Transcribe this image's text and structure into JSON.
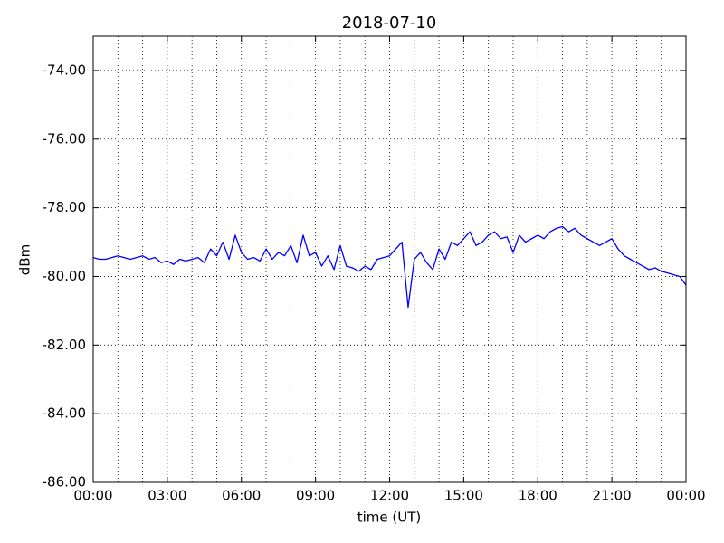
{
  "chart_data": {
    "type": "line",
    "title": "2018-07-10",
    "xlabel": "time (UT)",
    "ylabel": "dBm",
    "x": [
      0,
      0.25,
      0.5,
      0.75,
      1,
      1.25,
      1.5,
      1.75,
      2,
      2.25,
      2.5,
      2.75,
      3,
      3.25,
      3.5,
      3.75,
      4,
      4.25,
      4.5,
      4.75,
      5,
      5.25,
      5.5,
      5.75,
      6,
      6.25,
      6.5,
      6.75,
      7,
      7.25,
      7.5,
      7.75,
      8,
      8.25,
      8.5,
      8.75,
      9,
      9.25,
      9.5,
      9.75,
      10,
      10.25,
      10.5,
      10.75,
      11,
      11.25,
      11.5,
      11.75,
      12,
      12.25,
      12.5,
      12.75,
      13,
      13.25,
      13.5,
      13.75,
      14,
      14.25,
      14.5,
      14.75,
      15,
      15.25,
      15.5,
      15.75,
      16,
      16.25,
      16.5,
      16.75,
      17,
      17.25,
      17.5,
      17.75,
      18,
      18.25,
      18.5,
      18.75,
      19,
      19.25,
      19.5,
      19.75,
      20,
      20.25,
      20.5,
      20.75,
      21,
      21.25,
      21.5,
      21.75,
      22,
      22.25,
      22.5,
      22.75,
      23,
      23.25,
      23.5,
      23.75,
      24
    ],
    "series": [
      {
        "color": "#0000ff",
        "values": [
          -79.45,
          -79.5,
          -79.5,
          -79.45,
          -79.4,
          -79.45,
          -79.5,
          -79.45,
          -79.4,
          -79.5,
          -79.45,
          -79.6,
          -79.55,
          -79.65,
          -79.5,
          -79.55,
          -79.5,
          -79.45,
          -79.6,
          -79.2,
          -79.4,
          -79.0,
          -79.5,
          -78.8,
          -79.3,
          -79.5,
          -79.45,
          -79.55,
          -79.2,
          -79.5,
          -79.3,
          -79.4,
          -79.1,
          -79.6,
          -78.8,
          -79.4,
          -79.3,
          -79.7,
          -79.4,
          -79.8,
          -79.1,
          -79.7,
          -79.75,
          -79.85,
          -79.7,
          -79.8,
          -79.5,
          -79.45,
          -79.4,
          -79.2,
          -79.0,
          -80.9,
          -79.5,
          -79.3,
          -79.6,
          -79.8,
          -79.2,
          -79.5,
          -79.0,
          -79.1,
          -78.9,
          -78.7,
          -79.1,
          -79.0,
          -78.8,
          -78.7,
          -78.9,
          -78.85,
          -79.3,
          -78.8,
          -79.0,
          -78.9,
          -78.8,
          -78.9,
          -78.7,
          -78.6,
          -78.55,
          -78.7,
          -78.6,
          -78.8,
          -78.9,
          -79.0,
          -79.1,
          -79.0,
          -78.9,
          -79.2,
          -79.4,
          -79.5,
          -79.6,
          -79.7,
          -79.8,
          -79.75,
          -79.85,
          -79.9,
          -79.95,
          -80.0,
          -80.25
        ]
      }
    ],
    "xlim": [
      0,
      24
    ],
    "xticks": [
      {
        "value": 0,
        "label": "00:00"
      },
      {
        "value": 3,
        "label": "03:00"
      },
      {
        "value": 6,
        "label": "06:00"
      },
      {
        "value": 9,
        "label": "09:00"
      },
      {
        "value": 12,
        "label": "12:00"
      },
      {
        "value": 15,
        "label": "15:00"
      },
      {
        "value": 18,
        "label": "18:00"
      },
      {
        "value": 21,
        "label": "21:00"
      },
      {
        "value": 24,
        "label": "00:00"
      }
    ],
    "minor_xticks": [
      1,
      2,
      4,
      5,
      7,
      8,
      10,
      11,
      13,
      14,
      16,
      17,
      19,
      20,
      22,
      23
    ],
    "ylim": [
      -86,
      -73
    ],
    "yticks": [
      {
        "value": -86,
        "label": "-86.00"
      },
      {
        "value": -84,
        "label": "-84.00"
      },
      {
        "value": -82,
        "label": "-82.00"
      },
      {
        "value": -80,
        "label": "-80.00"
      },
      {
        "value": -78,
        "label": "-78.00"
      },
      {
        "value": -76,
        "label": "-76.00"
      },
      {
        "value": -74,
        "label": "-74.00"
      }
    ],
    "grid": true
  }
}
